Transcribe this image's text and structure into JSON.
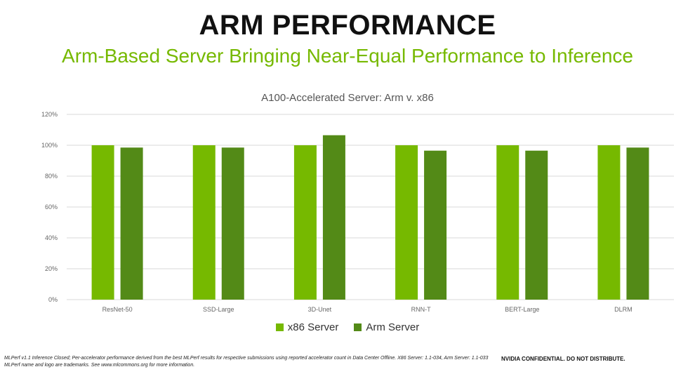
{
  "slide": {
    "title": "ARM PERFORMANCE",
    "subtitle": "Arm-Based Server Bringing Near-Equal Performance to Inference",
    "footnote": "MLPerf v1.1 Inference Closed; Per-accelerator performance derived from the best MLPerf results for respective submissions using reported accelerator count in Data Center Offline. X86 Server: 1.1-034, Arm Server: 1.1-033 MLPerf name and logo are trademarks. See www.mlcommons.org for more information.",
    "confidential": "NVIDIA CONFIDENTIAL. DO NOT DISTRIBUTE."
  },
  "colors": {
    "x86": "#76b900",
    "arm": "#538a17",
    "grid": "#d9d9d9",
    "axis_text": "#666666"
  },
  "chart_data": {
    "type": "bar",
    "title": "A100-Accelerated Server: Arm v. x86",
    "categories": [
      "ResNet-50",
      "SSD-Large",
      "3D-Unet",
      "RNN-T",
      "BERT-Large",
      "DLRM"
    ],
    "series": [
      {
        "name": "x86 Server",
        "values": [
          100,
          100,
          100,
          100,
          100,
          100
        ]
      },
      {
        "name": "Arm Server",
        "values": [
          98.5,
          98.5,
          106.5,
          96.5,
          96.5,
          98.5
        ]
      }
    ],
    "ylim": [
      0,
      120
    ],
    "yticks": [
      0,
      20,
      40,
      60,
      80,
      100,
      120
    ],
    "ytick_labels": [
      "0%",
      "20%",
      "40%",
      "60%",
      "80%",
      "100%",
      "120%"
    ],
    "grid": true,
    "legend": "bottom-center"
  }
}
